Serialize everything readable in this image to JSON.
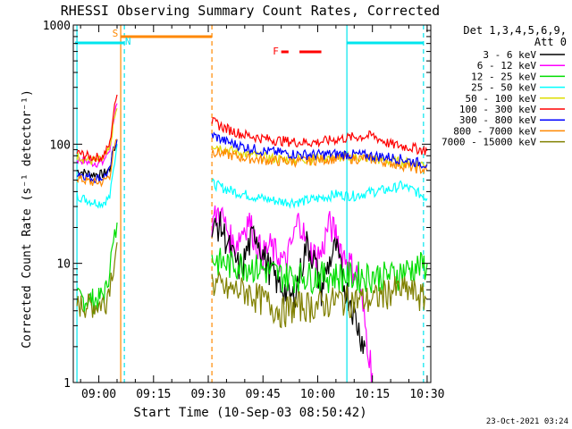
{
  "chart_data": {
    "type": "line",
    "title": "RHESSI Observing Summary Count Rates, Corrected",
    "xlabel": "Start Time (10-Sep-03 08:50:42)",
    "ylabel": "Corrected Count Rate (s⁻¹ detector⁻¹)",
    "footer": "23-Oct-2021 03:24",
    "y_scale": "log",
    "ylim": [
      1,
      1000
    ],
    "xlim_minutes": [
      53,
      151
    ],
    "x_ticks": [
      {
        "label": "09:00",
        "minute": 60
      },
      {
        "label": "09:15",
        "minute": 75
      },
      {
        "label": "09:30",
        "minute": 90
      },
      {
        "label": "09:45",
        "minute": 105
      },
      {
        "label": "10:00",
        "minute": 120
      },
      {
        "label": "10:15",
        "minute": 135
      },
      {
        "label": "10:30",
        "minute": 150
      }
    ],
    "y_ticks": [
      {
        "label": "1",
        "value": 1
      },
      {
        "label": "10",
        "value": 10
      },
      {
        "label": "100",
        "value": 100
      },
      {
        "label": "1000",
        "value": 1000
      }
    ],
    "legend": {
      "header1": "Det 1,3,4,5,6,9,",
      "header2": "Att 0",
      "placement": "right"
    },
    "series": [
      {
        "name": "3 - 6 keV",
        "color": "#000000",
        "x": [
          54,
          58,
          61,
          63,
          64,
          65
        ],
        "y": [
          60,
          56,
          56,
          62,
          90,
          100
        ]
      },
      {
        "name": "6 - 12 keV",
        "color": "#ff00ff",
        "x": [
          54,
          58,
          61,
          63,
          64,
          65
        ],
        "y": [
          75,
          70,
          70,
          90,
          160,
          220
        ]
      },
      {
        "name": "12 - 25 keV",
        "color": "#00dd00",
        "x": [
          54,
          58,
          60,
          62,
          63,
          64,
          65
        ],
        "y": [
          5,
          5,
          5,
          6,
          10,
          14,
          22
        ]
      },
      {
        "name": "25 - 50 keV",
        "color": "#00ffff",
        "x": [
          54,
          58,
          61,
          63,
          64,
          65
        ],
        "y": [
          37,
          33,
          32,
          36,
          60,
          100
        ]
      },
      {
        "name": "50 - 100 keV",
        "color": "#dddd00",
        "x": [
          54,
          58,
          61,
          63,
          64,
          65
        ],
        "y": [
          80,
          72,
          74,
          90,
          150,
          200
        ]
      },
      {
        "name": "100 - 300 keV",
        "color": "#ff0000",
        "x": [
          54,
          58,
          61,
          63,
          64,
          65
        ],
        "y": [
          85,
          78,
          78,
          100,
          180,
          260
        ]
      },
      {
        "name": "300 - 800 keV",
        "color": "#0000ff",
        "x": [
          54,
          58,
          61,
          63,
          64,
          65
        ],
        "y": [
          58,
          52,
          52,
          60,
          90,
          110
        ]
      },
      {
        "name": "800 - 7000 keV",
        "color": "#ff8800",
        "x": [
          54,
          58,
          61,
          63,
          64,
          65
        ],
        "y": [
          52,
          48,
          48,
          55,
          85,
          110
        ]
      },
      {
        "name": "7000 - 15000 keV",
        "color": "#808000",
        "x": [
          54,
          58,
          60,
          62,
          63,
          64,
          65
        ],
        "y": [
          4.5,
          4.5,
          4.5,
          5,
          7,
          10,
          15
        ]
      }
    ],
    "late_series": [
      {
        "color": "#00ffff",
        "x": [
          91,
          95,
          100,
          105,
          110,
          115,
          120,
          125,
          130,
          135,
          140,
          143,
          147,
          150
        ],
        "y": [
          47,
          42,
          38,
          35,
          33,
          33,
          35,
          38,
          37,
          40,
          42,
          45,
          40,
          35
        ]
      },
      {
        "color": "#dddd00",
        "x": [
          91,
          95,
          100,
          105,
          110,
          115,
          120,
          125,
          130,
          135,
          140,
          145,
          150
        ],
        "y": [
          100,
          90,
          83,
          78,
          75,
          75,
          76,
          78,
          78,
          76,
          72,
          70,
          68
        ]
      },
      {
        "color": "#ff8800",
        "x": [
          91,
          95,
          100,
          105,
          110,
          115,
          120,
          125,
          130,
          135,
          140,
          145,
          150
        ],
        "y": [
          88,
          82,
          77,
          74,
          72,
          72,
          74,
          76,
          76,
          75,
          70,
          65,
          60
        ]
      },
      {
        "color": "#0000ff",
        "x": [
          91,
          95,
          100,
          105,
          110,
          115,
          120,
          125,
          130,
          135,
          140,
          145,
          150
        ],
        "y": [
          120,
          105,
          95,
          88,
          85,
          82,
          82,
          83,
          82,
          80,
          78,
          73,
          68
        ]
      },
      {
        "color": "#ff0000",
        "x": [
          91,
          95,
          100,
          105,
          110,
          115,
          120,
          125,
          130,
          135,
          140,
          145,
          150
        ],
        "y": [
          155,
          135,
          120,
          112,
          107,
          104,
          104,
          110,
          115,
          118,
          100,
          95,
          88
        ]
      },
      {
        "color": "#ff00ff",
        "x": [
          91,
          93,
          95,
          97,
          99,
          101,
          103,
          105,
          107,
          109,
          111,
          113,
          115,
          117,
          119,
          121,
          123,
          125,
          127,
          129,
          131,
          133,
          135
        ],
        "y": [
          22,
          28,
          20,
          14,
          18,
          24,
          16,
          12,
          14,
          12,
          10,
          15,
          25,
          14,
          12,
          12,
          22,
          18,
          12,
          10,
          8,
          3,
          1.2
        ]
      },
      {
        "color": "#000000",
        "x": [
          91,
          93,
          95,
          97,
          99,
          101,
          103,
          105,
          107,
          109,
          111,
          113,
          115,
          117,
          119,
          121,
          123,
          125,
          127,
          129,
          131,
          133
        ],
        "y": [
          18,
          22,
          16,
          11,
          9,
          14,
          19,
          12,
          9,
          7,
          6,
          5,
          8,
          15,
          11,
          6,
          10,
          14,
          7,
          5,
          3,
          2
        ]
      },
      {
        "color": "#00dd00",
        "x": [
          91,
          95,
          100,
          105,
          110,
          115,
          120,
          125,
          130,
          135,
          140,
          145,
          150
        ],
        "y": [
          11,
          10,
          10,
          9,
          8,
          8,
          8,
          8,
          8,
          8,
          8,
          9,
          10
        ]
      },
      {
        "color": "#808000",
        "x": [
          91,
          95,
          100,
          105,
          110,
          115,
          120,
          125,
          130,
          135,
          140,
          145,
          150
        ],
        "y": [
          7,
          6,
          6,
          5,
          4,
          4.5,
          4.5,
          5,
          5,
          5,
          6,
          6,
          5
        ]
      }
    ],
    "markers": {
      "n_lines": [
        {
          "minute": 54,
          "style": "solid"
        },
        {
          "minute": 67,
          "style": "dashed"
        },
        {
          "minute": 128,
          "style": "solid"
        },
        {
          "minute": 149,
          "style": "dashed"
        }
      ],
      "s_lines": [
        {
          "minute": 66,
          "style": "solid"
        },
        {
          "minute": 91,
          "style": "dashed"
        }
      ],
      "cyan_bars": [
        [
          53.5,
          67
        ],
        [
          128,
          149
        ]
      ],
      "orange_bar": [
        66,
        91
      ],
      "flare_bars": [
        [
          110,
          112
        ],
        [
          115,
          121
        ]
      ],
      "labels": [
        {
          "text": "S",
          "minute": 64.5
        },
        {
          "text": "N",
          "minute": 68
        },
        {
          "text": "F",
          "minute": 108.5
        }
      ]
    }
  }
}
